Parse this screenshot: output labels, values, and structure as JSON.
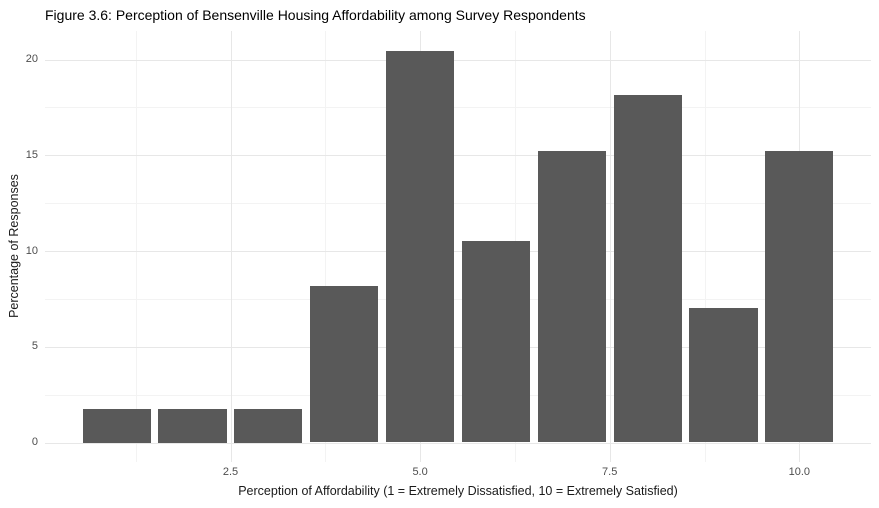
{
  "colors": {
    "bar": "#595959",
    "grid_major": "#e7e7e7",
    "grid_minor": "#f3f3f3",
    "axis_text": "#4d4d4d",
    "title_text": "#000000",
    "axis_title_text": "#1a1a1a",
    "bg": "#ffffff"
  },
  "chart_data": {
    "type": "bar",
    "title": "Figure 3.6: Perception of Bensenville Housing Affordability among Survey Respondents",
    "xlabel": "Perception of Affordability (1 = Extremely Dissatisfied, 10 = Extremely Satisfied)",
    "ylabel": "Percentage of Responses",
    "categories": [
      1,
      2,
      3,
      4,
      5,
      6,
      7,
      8,
      9,
      10
    ],
    "values": [
      1.75,
      1.75,
      1.75,
      8.19,
      20.47,
      10.53,
      15.2,
      18.13,
      7.02,
      15.2
    ],
    "x_ticks": {
      "values": [
        2.5,
        5,
        7.5,
        10
      ],
      "labels": [
        "2.5",
        "5.0",
        "7.5",
        "10.0"
      ]
    },
    "y_ticks": {
      "values": [
        0,
        5,
        10,
        15,
        20
      ],
      "labels": [
        "0",
        "5",
        "10",
        "15",
        "20"
      ]
    },
    "x_minor": [
      1.25,
      3.75,
      6.25,
      8.75
    ],
    "y_minor": [
      2.5,
      7.5,
      12.5,
      17.5
    ],
    "xlim": [
      0.055,
      10.945
    ],
    "ylim": [
      -1.02,
      21.49
    ],
    "bar_rel_width": 0.9,
    "grid": "major+minor horizontal and vertical",
    "legend": "none",
    "panel_background": "white"
  }
}
